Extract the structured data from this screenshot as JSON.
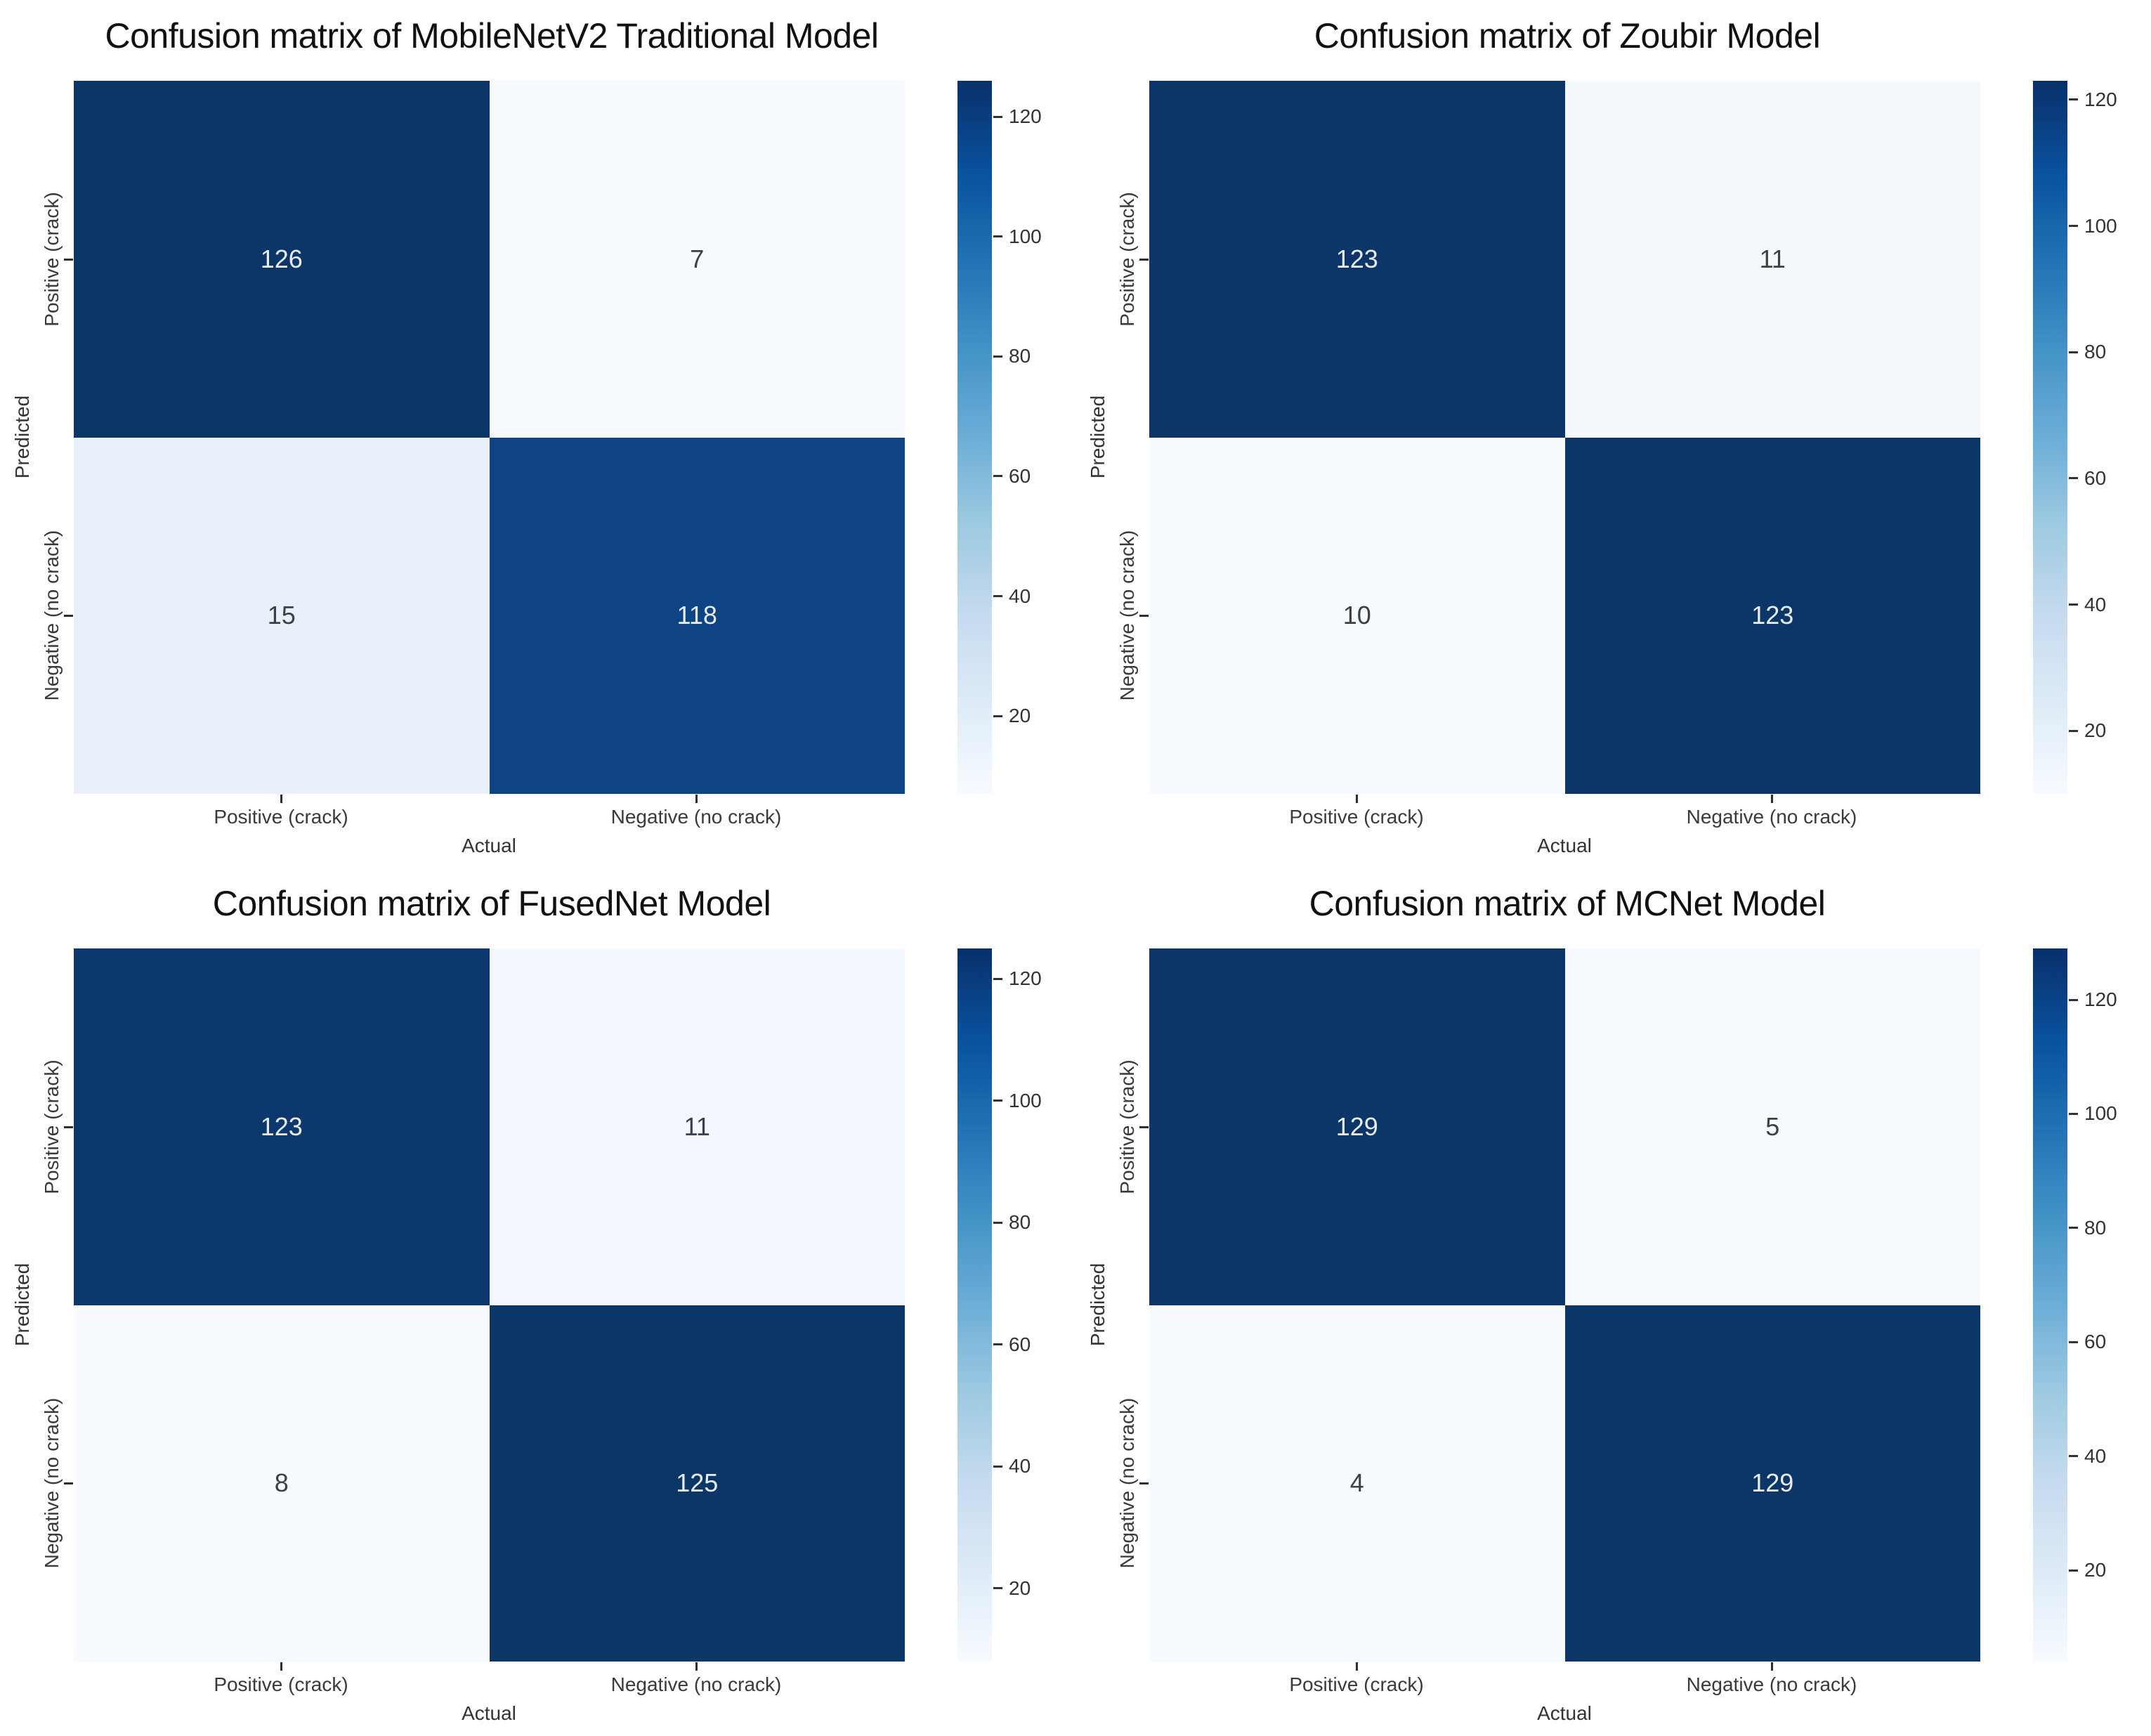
{
  "figure": {
    "background": "#ffffff",
    "title_color": "#111111",
    "tick_label_color": "#3a3a3a",
    "axis_label_color": "#333333"
  },
  "colormap": {
    "name": "Blues",
    "gradient_top_to_bottom": [
      "#08306b",
      "#08519c",
      "#2171b5",
      "#4292c6",
      "#6baed6",
      "#9ecae1",
      "#c6dbef",
      "#deebf7",
      "#f7fbff"
    ]
  },
  "chart_data": [
    {
      "type": "heatmap",
      "title": "Confusion matrix of MobileNetV2 Traditional Model",
      "xlabel": "Actual",
      "ylabel": "Predicted",
      "x_tick_labels": [
        "Positive (crack)",
        "Negative (no crack)"
      ],
      "y_tick_labels": [
        "Positive (crack)",
        "Negative (no crack)"
      ],
      "matrix": [
        [
          126,
          7
        ],
        [
          15,
          118
        ]
      ],
      "vmin": 7,
      "vmax": 126,
      "colorbar_ticks": [
        20,
        40,
        60,
        80,
        100,
        120
      ],
      "legend_position": "right-colorbar",
      "grid": false,
      "cell_colors": [
        [
          "#0c3568",
          "#f7fbff"
        ],
        [
          "#e9f0f9",
          "#0e4483"
        ]
      ],
      "cell_text_colors": [
        [
          "#e8ecf3",
          "#3b4046"
        ],
        [
          "#3b4046",
          "#e8ecf3"
        ]
      ]
    },
    {
      "type": "heatmap",
      "title": "Confusion matrix of Zoubir Model",
      "xlabel": "Actual",
      "ylabel": "Predicted",
      "x_tick_labels": [
        "Positive (crack)",
        "Negative (no crack)"
      ],
      "y_tick_labels": [
        "Positive (crack)",
        "Negative (no crack)"
      ],
      "matrix": [
        [
          123,
          11
        ],
        [
          10,
          123
        ]
      ],
      "vmin": 10,
      "vmax": 123,
      "colorbar_ticks": [
        20,
        40,
        60,
        80,
        100,
        120
      ],
      "legend_position": "right-colorbar",
      "grid": false,
      "cell_colors": [
        [
          "#0c3568",
          "#f4f9fe"
        ],
        [
          "#f7fbff",
          "#0c3568"
        ]
      ],
      "cell_text_colors": [
        [
          "#e8ecf3",
          "#3b4046"
        ],
        [
          "#3b4046",
          "#e8ecf3"
        ]
      ]
    },
    {
      "type": "heatmap",
      "title": "Confusion matrix of FusedNet Model",
      "xlabel": "Actual",
      "ylabel": "Predicted",
      "x_tick_labels": [
        "Positive (crack)",
        "Negative (no crack)"
      ],
      "y_tick_labels": [
        "Positive (crack)",
        "Negative (no crack)"
      ],
      "matrix": [
        [
          123,
          11
        ],
        [
          8,
          125
        ]
      ],
      "vmin": 8,
      "vmax": 125,
      "colorbar_ticks": [
        20,
        40,
        60,
        80,
        100,
        120
      ],
      "legend_position": "right-colorbar",
      "grid": false,
      "cell_colors": [
        [
          "#0d386e",
          "#f2f8fd"
        ],
        [
          "#f7fbff",
          "#0c3568"
        ]
      ],
      "cell_text_colors": [
        [
          "#e8ecf3",
          "#3b4046"
        ],
        [
          "#3b4046",
          "#e8ecf3"
        ]
      ]
    },
    {
      "type": "heatmap",
      "title": "Confusion matrix of MCNet Model",
      "xlabel": "Actual",
      "ylabel": "Predicted",
      "x_tick_labels": [
        "Positive (crack)",
        "Negative (no crack)"
      ],
      "y_tick_labels": [
        "Positive (crack)",
        "Negative (no crack)"
      ],
      "matrix": [
        [
          129,
          5
        ],
        [
          4,
          129
        ]
      ],
      "vmin": 4,
      "vmax": 129,
      "colorbar_ticks": [
        20,
        40,
        60,
        80,
        100,
        120
      ],
      "legend_position": "right-colorbar",
      "grid": false,
      "cell_colors": [
        [
          "#0c3568",
          "#f5fafe"
        ],
        [
          "#f7fbff",
          "#0c3568"
        ]
      ],
      "cell_text_colors": [
        [
          "#e8ecf3",
          "#3b4046"
        ],
        [
          "#3b4046",
          "#e8ecf3"
        ]
      ]
    }
  ]
}
